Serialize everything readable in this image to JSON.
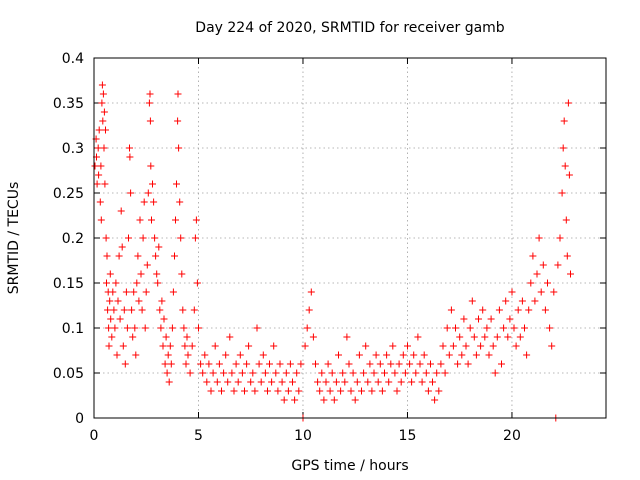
{
  "chart_data": {
    "type": "scatter",
    "title": "Day 224 of 2020, SRMTID for receiver gamb",
    "xlabel": "GPS time / hours",
    "ylabel": "SRMTID / TECUs",
    "xlim": [
      0,
      24.5
    ],
    "ylim": [
      0,
      0.4
    ],
    "x_ticks": [
      0,
      5,
      10,
      15,
      20
    ],
    "x_tick_labels": [
      "0",
      "5",
      "10",
      "15",
      "20"
    ],
    "y_ticks": [
      0,
      0.05,
      0.1,
      0.15,
      0.2,
      0.25,
      0.3,
      0.35,
      0.4
    ],
    "y_tick_labels": [
      "0",
      "0.05",
      "0.1",
      "0.15",
      "0.2",
      "0.25",
      "0.3",
      "0.35",
      "0.4"
    ],
    "grid": true,
    "marker": "+",
    "color": "#ff0000",
    "series": [
      {
        "name": "SRMTID",
        "points": [
          [
            0.05,
            0.28
          ],
          [
            0.1,
            0.31
          ],
          [
            0.12,
            0.29
          ],
          [
            0.15,
            0.26
          ],
          [
            0.2,
            0.3
          ],
          [
            0.22,
            0.27
          ],
          [
            0.25,
            0.32
          ],
          [
            0.3,
            0.24
          ],
          [
            0.33,
            0.28
          ],
          [
            0.35,
            0.22
          ],
          [
            0.38,
            0.35
          ],
          [
            0.4,
            0.37
          ],
          [
            0.42,
            0.33
          ],
          [
            0.45,
            0.36
          ],
          [
            0.48,
            0.3
          ],
          [
            0.5,
            0.34
          ],
          [
            0.52,
            0.26
          ],
          [
            0.55,
            0.32
          ],
          [
            0.58,
            0.2
          ],
          [
            0.6,
            0.15
          ],
          [
            0.62,
            0.18
          ],
          [
            0.65,
            0.12
          ],
          [
            0.68,
            0.14
          ],
          [
            0.7,
            0.1
          ],
          [
            0.72,
            0.08
          ],
          [
            0.75,
            0.13
          ],
          [
            0.78,
            0.16
          ],
          [
            0.8,
            0.11
          ],
          [
            0.85,
            0.09
          ],
          [
            0.9,
            0.14
          ],
          [
            0.95,
            0.12
          ],
          [
            1.0,
            0.1
          ],
          [
            1.05,
            0.15
          ],
          [
            1.1,
            0.07
          ],
          [
            1.15,
            0.13
          ],
          [
            1.2,
            0.18
          ],
          [
            1.25,
            0.11
          ],
          [
            1.3,
            0.23
          ],
          [
            1.35,
            0.19
          ],
          [
            1.4,
            0.08
          ],
          [
            1.45,
            0.12
          ],
          [
            1.5,
            0.06
          ],
          [
            1.55,
            0.14
          ],
          [
            1.6,
            0.1
          ],
          [
            1.65,
            0.2
          ],
          [
            1.7,
            0.3
          ],
          [
            1.72,
            0.29
          ],
          [
            1.75,
            0.25
          ],
          [
            1.8,
            0.12
          ],
          [
            1.85,
            0.09
          ],
          [
            1.9,
            0.14
          ],
          [
            1.95,
            0.1
          ],
          [
            2.0,
            0.07
          ],
          [
            2.05,
            0.15
          ],
          [
            2.1,
            0.18
          ],
          [
            2.15,
            0.13
          ],
          [
            2.2,
            0.22
          ],
          [
            2.25,
            0.16
          ],
          [
            2.3,
            0.12
          ],
          [
            2.35,
            0.2
          ],
          [
            2.4,
            0.24
          ],
          [
            2.45,
            0.1
          ],
          [
            2.5,
            0.14
          ],
          [
            2.55,
            0.17
          ],
          [
            2.6,
            0.25
          ],
          [
            2.65,
            0.35
          ],
          [
            2.68,
            0.36
          ],
          [
            2.7,
            0.33
          ],
          [
            2.72,
            0.28
          ],
          [
            2.75,
            0.22
          ],
          [
            2.8,
            0.26
          ],
          [
            2.85,
            0.24
          ],
          [
            2.9,
            0.2
          ],
          [
            2.95,
            0.18
          ],
          [
            3.0,
            0.16
          ],
          [
            3.05,
            0.15
          ],
          [
            3.1,
            0.19
          ],
          [
            3.15,
            0.12
          ],
          [
            3.2,
            0.1
          ],
          [
            3.25,
            0.13
          ],
          [
            3.3,
            0.08
          ],
          [
            3.35,
            0.11
          ],
          [
            3.4,
            0.06
          ],
          [
            3.45,
            0.09
          ],
          [
            3.5,
            0.05
          ],
          [
            3.55,
            0.07
          ],
          [
            3.6,
            0.04
          ],
          [
            3.65,
            0.08
          ],
          [
            3.7,
            0.06
          ],
          [
            3.75,
            0.1
          ],
          [
            3.8,
            0.14
          ],
          [
            3.85,
            0.18
          ],
          [
            3.9,
            0.22
          ],
          [
            3.95,
            0.26
          ],
          [
            4.0,
            0.33
          ],
          [
            4.02,
            0.36
          ],
          [
            4.05,
            0.3
          ],
          [
            4.1,
            0.24
          ],
          [
            4.15,
            0.2
          ],
          [
            4.2,
            0.16
          ],
          [
            4.25,
            0.12
          ],
          [
            4.3,
            0.1
          ],
          [
            4.35,
            0.08
          ],
          [
            4.4,
            0.06
          ],
          [
            4.45,
            0.09
          ],
          [
            4.5,
            0.07
          ],
          [
            4.6,
            0.05
          ],
          [
            4.7,
            0.08
          ],
          [
            4.8,
            0.12
          ],
          [
            4.85,
            0.2
          ],
          [
            4.9,
            0.22
          ],
          [
            4.95,
            0.15
          ],
          [
            5.0,
            0.1
          ],
          [
            5.1,
            0.06
          ],
          [
            5.2,
            0.05
          ],
          [
            5.3,
            0.07
          ],
          [
            5.4,
            0.04
          ],
          [
            5.5,
            0.06
          ],
          [
            5.6,
            0.03
          ],
          [
            5.7,
            0.05
          ],
          [
            5.8,
            0.08
          ],
          [
            5.9,
            0.04
          ],
          [
            6.0,
            0.06
          ],
          [
            6.1,
            0.03
          ],
          [
            6.2,
            0.05
          ],
          [
            6.3,
            0.07
          ],
          [
            6.4,
            0.04
          ],
          [
            6.5,
            0.09
          ],
          [
            6.6,
            0.05
          ],
          [
            6.7,
            0.03
          ],
          [
            6.8,
            0.06
          ],
          [
            6.9,
            0.04
          ],
          [
            7.0,
            0.07
          ],
          [
            7.1,
            0.05
          ],
          [
            7.2,
            0.03
          ],
          [
            7.3,
            0.06
          ],
          [
            7.4,
            0.08
          ],
          [
            7.5,
            0.04
          ],
          [
            7.6,
            0.05
          ],
          [
            7.7,
            0.03
          ],
          [
            7.8,
            0.1
          ],
          [
            7.9,
            0.06
          ],
          [
            8.0,
            0.04
          ],
          [
            8.1,
            0.07
          ],
          [
            8.2,
            0.05
          ],
          [
            8.3,
            0.03
          ],
          [
            8.4,
            0.06
          ],
          [
            8.5,
            0.04
          ],
          [
            8.6,
            0.08
          ],
          [
            8.7,
            0.05
          ],
          [
            8.8,
            0.03
          ],
          [
            8.9,
            0.06
          ],
          [
            9.0,
            0.04
          ],
          [
            9.1,
            0.02
          ],
          [
            9.2,
            0.05
          ],
          [
            9.3,
            0.03
          ],
          [
            9.4,
            0.06
          ],
          [
            9.5,
            0.04
          ],
          [
            9.6,
            0.02
          ],
          [
            9.7,
            0.05
          ],
          [
            9.8,
            0.03
          ],
          [
            9.9,
            0.06
          ],
          [
            10.0,
            0.0
          ],
          [
            10.1,
            0.08
          ],
          [
            10.2,
            0.1
          ],
          [
            10.3,
            0.12
          ],
          [
            10.4,
            0.14
          ],
          [
            10.5,
            0.09
          ],
          [
            10.6,
            0.06
          ],
          [
            10.7,
            0.04
          ],
          [
            10.8,
            0.03
          ],
          [
            10.9,
            0.05
          ],
          [
            11.0,
            0.02
          ],
          [
            11.1,
            0.04
          ],
          [
            11.2,
            0.06
          ],
          [
            11.3,
            0.03
          ],
          [
            11.4,
            0.05
          ],
          [
            11.5,
            0.02
          ],
          [
            11.6,
            0.04
          ],
          [
            11.7,
            0.07
          ],
          [
            11.8,
            0.03
          ],
          [
            11.9,
            0.05
          ],
          [
            12.0,
            0.04
          ],
          [
            12.1,
            0.09
          ],
          [
            12.2,
            0.06
          ],
          [
            12.3,
            0.03
          ],
          [
            12.4,
            0.05
          ],
          [
            12.5,
            0.02
          ],
          [
            12.6,
            0.04
          ],
          [
            12.7,
            0.07
          ],
          [
            12.8,
            0.03
          ],
          [
            12.9,
            0.05
          ],
          [
            13.0,
            0.08
          ],
          [
            13.1,
            0.04
          ],
          [
            13.2,
            0.06
          ],
          [
            13.3,
            0.03
          ],
          [
            13.4,
            0.05
          ],
          [
            13.5,
            0.07
          ],
          [
            13.6,
            0.04
          ],
          [
            13.7,
            0.06
          ],
          [
            13.8,
            0.03
          ],
          [
            13.9,
            0.05
          ],
          [
            14.0,
            0.07
          ],
          [
            14.1,
            0.04
          ],
          [
            14.2,
            0.06
          ],
          [
            14.3,
            0.08
          ],
          [
            14.4,
            0.05
          ],
          [
            14.5,
            0.03
          ],
          [
            14.6,
            0.06
          ],
          [
            14.7,
            0.04
          ],
          [
            14.8,
            0.07
          ],
          [
            14.9,
            0.05
          ],
          [
            15.0,
            0.08
          ],
          [
            15.1,
            0.06
          ],
          [
            15.2,
            0.04
          ],
          [
            15.3,
            0.07
          ],
          [
            15.4,
            0.05
          ],
          [
            15.5,
            0.09
          ],
          [
            15.6,
            0.06
          ],
          [
            15.7,
            0.04
          ],
          [
            15.8,
            0.07
          ],
          [
            15.9,
            0.05
          ],
          [
            16.0,
            0.03
          ],
          [
            16.1,
            0.06
          ],
          [
            16.2,
            0.04
          ],
          [
            16.3,
            0.02
          ],
          [
            16.4,
            0.05
          ],
          [
            16.5,
            0.03
          ],
          [
            16.6,
            0.06
          ],
          [
            16.7,
            0.08
          ],
          [
            16.8,
            0.05
          ],
          [
            16.9,
            0.1
          ],
          [
            17.0,
            0.07
          ],
          [
            17.1,
            0.12
          ],
          [
            17.2,
            0.08
          ],
          [
            17.3,
            0.1
          ],
          [
            17.4,
            0.06
          ],
          [
            17.5,
            0.09
          ],
          [
            17.6,
            0.07
          ],
          [
            17.7,
            0.11
          ],
          [
            17.8,
            0.08
          ],
          [
            17.9,
            0.06
          ],
          [
            18.0,
            0.1
          ],
          [
            18.1,
            0.13
          ],
          [
            18.2,
            0.09
          ],
          [
            18.3,
            0.07
          ],
          [
            18.4,
            0.11
          ],
          [
            18.5,
            0.08
          ],
          [
            18.6,
            0.12
          ],
          [
            18.7,
            0.09
          ],
          [
            18.8,
            0.1
          ],
          [
            18.9,
            0.07
          ],
          [
            19.0,
            0.11
          ],
          [
            19.1,
            0.08
          ],
          [
            19.2,
            0.05
          ],
          [
            19.3,
            0.09
          ],
          [
            19.4,
            0.12
          ],
          [
            19.5,
            0.06
          ],
          [
            19.6,
            0.1
          ],
          [
            19.7,
            0.13
          ],
          [
            19.8,
            0.09
          ],
          [
            19.9,
            0.11
          ],
          [
            20.0,
            0.14
          ],
          [
            20.1,
            0.1
          ],
          [
            20.2,
            0.08
          ],
          [
            20.3,
            0.12
          ],
          [
            20.4,
            0.09
          ],
          [
            20.5,
            0.13
          ],
          [
            20.6,
            0.1
          ],
          [
            20.7,
            0.07
          ],
          [
            20.8,
            0.12
          ],
          [
            20.9,
            0.15
          ],
          [
            21.0,
            0.18
          ],
          [
            21.1,
            0.13
          ],
          [
            21.2,
            0.16
          ],
          [
            21.3,
            0.2
          ],
          [
            21.4,
            0.14
          ],
          [
            21.5,
            0.17
          ],
          [
            21.6,
            0.12
          ],
          [
            21.7,
            0.15
          ],
          [
            21.8,
            0.1
          ],
          [
            21.9,
            0.08
          ],
          [
            22.0,
            0.14
          ],
          [
            22.1,
            0.0
          ],
          [
            22.2,
            0.17
          ],
          [
            22.3,
            0.2
          ],
          [
            22.4,
            0.25
          ],
          [
            22.45,
            0.3
          ],
          [
            22.5,
            0.33
          ],
          [
            22.55,
            0.28
          ],
          [
            22.6,
            0.22
          ],
          [
            22.65,
            0.18
          ],
          [
            22.7,
            0.35
          ],
          [
            22.75,
            0.27
          ],
          [
            22.8,
            0.16
          ]
        ]
      }
    ]
  }
}
